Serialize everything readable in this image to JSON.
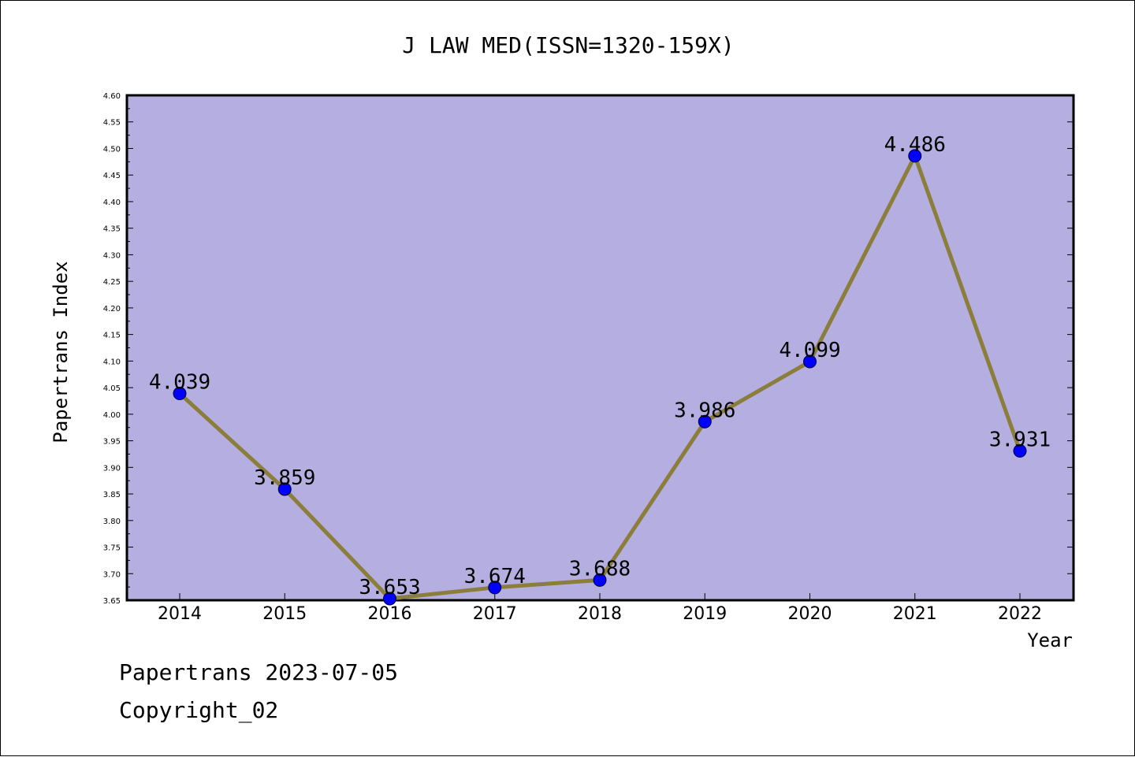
{
  "chart_data": {
    "type": "line",
    "title": "J LAW MED(ISSN=1320-159X)",
    "xlabel": "Year",
    "ylabel": "Papertrans Index",
    "categories": [
      "2014",
      "2015",
      "2016",
      "2017",
      "2018",
      "2019",
      "2020",
      "2021",
      "2022"
    ],
    "series": [
      {
        "values": [
          4.039,
          3.859,
          3.653,
          3.674,
          3.688,
          3.986,
          4.099,
          4.486,
          3.931
        ],
        "data_labels": [
          "4.039",
          "3.859",
          "3.653",
          "3.674",
          "3.688",
          "3.986",
          "4.099",
          "4.486",
          "3.931"
        ],
        "line_color": "#8b7d3a",
        "marker_color": "#0000ff"
      }
    ],
    "ylim": [
      3.65,
      4.6
    ],
    "yticks": [
      "3.65",
      "3.70",
      "3.75",
      "3.80",
      "3.85",
      "3.90",
      "3.95",
      "4.00",
      "4.05",
      "4.10",
      "4.15",
      "4.20",
      "4.25",
      "4.30",
      "4.35",
      "4.40",
      "4.45",
      "4.50",
      "4.55",
      "4.60"
    ],
    "grid": false,
    "plot_background": "#b5aee1"
  },
  "footer": {
    "date_line": "Papertrans 2023-07-05",
    "copyright_line": "Copyright_02"
  }
}
